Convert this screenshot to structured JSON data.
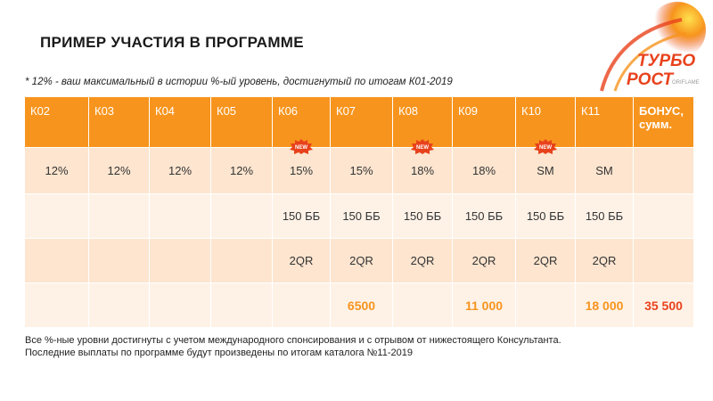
{
  "title": "ПРИМЕР УЧАСТИЯ В ПРОГРАММЕ",
  "note": "* 12% - ваш максимальный в истории %-ый уровень, достигнутый по итогам К01-2019",
  "logo": {
    "line1": "ТУРБО",
    "line2": "РОСТ",
    "brand": "ORIFLAME"
  },
  "badge_label": "NEW",
  "colors": {
    "accent": "#f7941d",
    "red": "#e8421c",
    "row_dark": "#fde5cf",
    "row_light": "#fef2e7"
  },
  "table": {
    "headers": [
      "К02",
      "К03",
      "К04",
      "К05",
      "К06",
      "К07",
      "К08",
      "К09",
      "К10",
      "К11",
      "БОНУС, сумм."
    ],
    "levels": [
      "12%",
      "12%",
      "12%",
      "12%",
      "15%",
      "15%",
      "18%",
      "18%",
      "SM",
      "SM",
      ""
    ],
    "bb": [
      "",
      "",
      "",
      "",
      "150 ББ",
      "150 ББ",
      "150 ББ",
      "150 ББ",
      "150 ББ",
      "150 ББ",
      ""
    ],
    "qr": [
      "",
      "",
      "",
      "",
      "2QR",
      "2QR",
      "2QR",
      "2QR",
      "2QR",
      "2QR",
      ""
    ],
    "bonus": [
      "",
      "",
      "",
      "",
      "",
      "6500",
      "",
      "11 000",
      "",
      "18 000",
      "35 500"
    ]
  },
  "footer": {
    "line1": "Все %-ные уровни достигнуты с учетом международного спонсирования и с отрывом от нижестоящего Консультанта.",
    "line2": "Последние выплаты по программе будут произведены по итогам каталога №11-2019"
  }
}
